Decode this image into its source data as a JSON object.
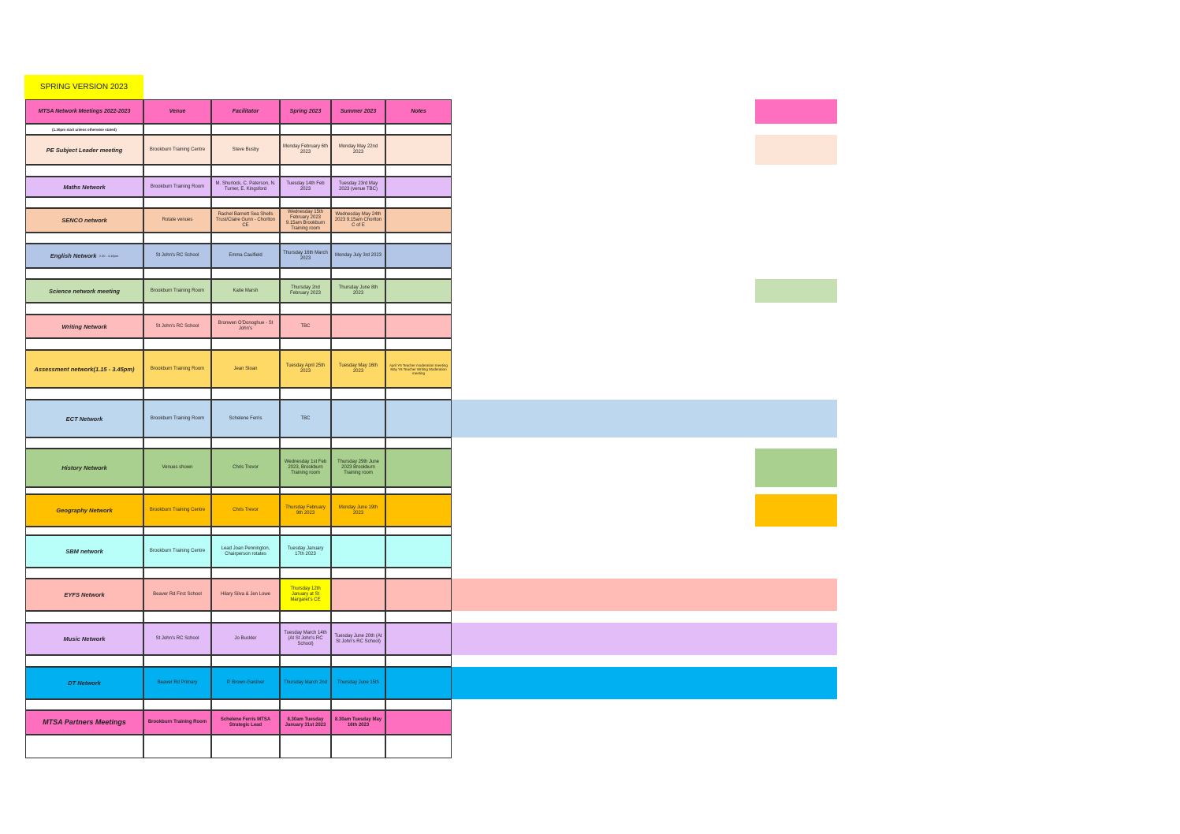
{
  "header": {
    "spring_version": "SPRING VERSION 2023"
  },
  "table": {
    "columns": [
      "MTSA Network Meetings 2022-2023",
      "Venue",
      "Facilitator",
      "Spring 2023",
      "Summer 2023",
      "Notes"
    ],
    "note": "(1.30pm start unless otherwise stated)",
    "rows": [
      {
        "label": "PE Subject Leader meeting",
        "venue": "Brookburn Training Centre",
        "facilitator": "Steve Busby",
        "spring": "Monday February 6th 2023",
        "summer": "Monday May 22nd 2023"
      },
      {
        "label": "Maths Network",
        "venue": "Brookburn Training Room",
        "facilitator": "M. Shurlock, C. Paterson, N. Turner, E. Kingsford",
        "spring": "Tuesday 14th Feb 2023",
        "summer": "Tuesday 23rd May 2023 (venue TBC)"
      },
      {
        "label": "SENCO network",
        "venue": "Rotate venues",
        "facilitator": "Rachel Barnett Sea Shells Trust/Claire Gunn - Chorlton CE",
        "spring": "Wednesday 15th February 2023 9.15am Brookburn Training room",
        "summer": "Wednesday May 24th 2023 9.15am Chorlton C of E"
      },
      {
        "label": "English Network",
        "label_note": "3.30 - 4.45pm",
        "venue": "St John's RC School",
        "facilitator": "Emma Caulfield",
        "spring": "Thursday 16th March 2023",
        "summer": "Monday July 3rd 2023"
      },
      {
        "label": "Science network meeting",
        "venue": "Brookburn Training Room",
        "facilitator": "Katie Marsh",
        "spring": "Thursday 2nd February 2023",
        "summer": "Thursday June 8th 2023"
      },
      {
        "label": "Writing Network",
        "venue": "St John's RC School",
        "facilitator": "Bronwen O'Donoghue - St John's",
        "spring": "TBC"
      },
      {
        "label": "Assessment network(1.15 - 3.45pm)",
        "venue": "Brookburn Training Room",
        "facilitator": "Jean Sloan",
        "spring": "Tuesday  April 25th 2023",
        "summer": "Tuesday May 16th 2023",
        "notes": "April Y6 Teacher moderation meeting May Y6 Teacher Writing Moderation meeting"
      },
      {
        "label": "ECT Network",
        "venue": "Brookburn Training Room",
        "facilitator": "Schelene Ferris",
        "spring": "TBC"
      },
      {
        "label": "History Network",
        "venue": "Venues shown",
        "facilitator": "Chris Trevor",
        "spring": "Wednesday 1st Feb 2023, Brookburn Training room",
        "summer": "Thursday 29th June 2023 Brookburn Training room"
      },
      {
        "label": "Geography Network",
        "venue": "Brookburn Training Centre",
        "facilitator": "Chris Trevor",
        "spring": "Thursday February 9th 2023",
        "summer": "Monday June 19th 2023"
      },
      {
        "label": "SBM network",
        "venue": "Brookburn Training Centre",
        "facilitator": "Lead Joan Pennington, Chairperson rotates",
        "spring": "Tuesday January 17th 2023"
      },
      {
        "label": "EYFS Network",
        "venue": "Beaver Rd First School",
        "facilitator": "Hilary Silva & Jen Lowe",
        "spring": "Thursday 12th January at St Margaret's CE"
      },
      {
        "label": "Music Network",
        "venue": "St John's RC School",
        "facilitator": "Jo Buckler",
        "spring": "Tuesday March 14th (At St John's RC School)",
        "summer": "Tuesday June 20th (At St John's RC School)"
      },
      {
        "label": "DT Network",
        "venue": "Beaver Rd Primary",
        "facilitator": "P. Brown-Gardner",
        "spring": "Thursday March 2nd",
        "summer": "Thursday June 15th"
      },
      {
        "label": "MTSA Partners Meetings",
        "venue": "Brookburn Training Room",
        "facilitator": "Schelene Ferris MTSA Strategic Lead",
        "spring": "8.30am Tuesday January 31st 2023",
        "summer": "8.30am Tuesday May 16th 2023"
      }
    ]
  }
}
